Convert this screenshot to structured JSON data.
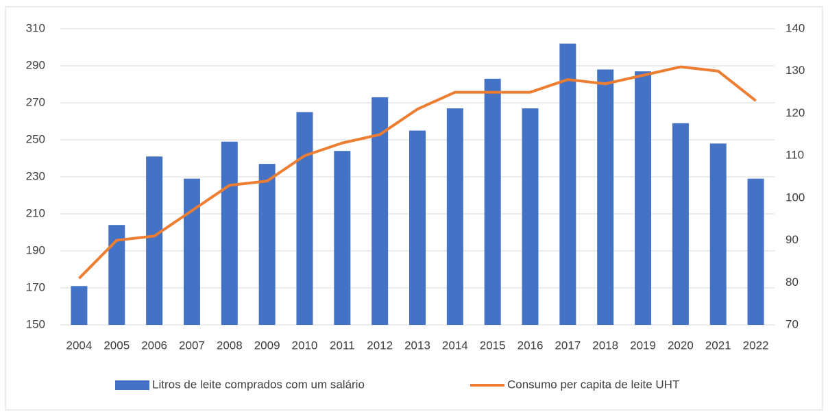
{
  "chart_data": {
    "type": "combo",
    "categories": [
      "2004",
      "2005",
      "2006",
      "2007",
      "2008",
      "2009",
      "2010",
      "2011",
      "2012",
      "2013",
      "2014",
      "2015",
      "2016",
      "2017",
      "2018",
      "2019",
      "2020",
      "2021",
      "2022"
    ],
    "series": [
      {
        "name": "Litros de leite comprados com um salário",
        "type": "bar",
        "color": "#4472c4",
        "values": [
          171,
          204,
          241,
          229,
          249,
          237,
          265,
          244,
          273,
          255,
          267,
          283,
          267,
          302,
          288,
          287,
          259,
          248,
          229
        ]
      },
      {
        "name": "Consumo per capita de leite UHT",
        "type": "line",
        "color": "#ed7d31",
        "axis": "y2",
        "values": [
          81,
          90,
          91,
          97,
          103,
          104,
          110,
          113,
          115,
          121,
          125,
          125,
          125,
          128,
          127,
          129,
          131,
          130,
          123
        ]
      }
    ],
    "ylim": [
      150,
      310
    ],
    "yticks": [
      150,
      170,
      190,
      210,
      230,
      250,
      270,
      290,
      310
    ],
    "y2lim": [
      70,
      140
    ],
    "y2ticks": [
      70,
      80,
      90,
      100,
      110,
      120,
      130,
      140
    ],
    "grid": true,
    "legend": "bottom"
  }
}
